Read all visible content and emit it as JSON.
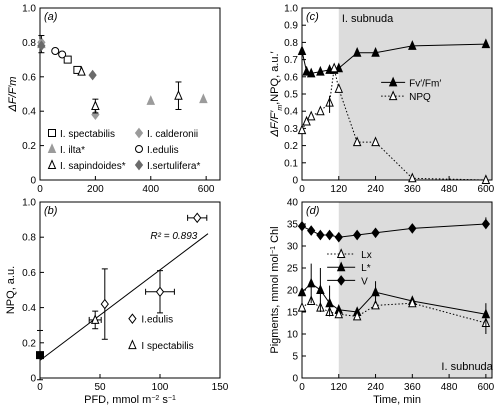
{
  "colors": {
    "black": "#000000",
    "white": "#ffffff",
    "dark_grey": "#6b6b6b",
    "mid_grey": "#9b9b9b",
    "shade": "#dcdcdc"
  },
  "chart_data": [
    {
      "panel": "(a)",
      "type": "scatter",
      "ylabel": "ΔF/F′m",
      "xlim": [
        0,
        650
      ],
      "ylim": [
        0,
        1.0
      ],
      "x_ticks": [
        "0",
        "200",
        "400",
        "600"
      ],
      "y_ticks": [
        "0",
        "0.2",
        "0.4",
        "0.6",
        "0.8",
        "1.0"
      ],
      "legend": [
        {
          "label": "I. spectabilis",
          "marker": "open-square"
        },
        {
          "label": "I. calderonii",
          "marker": "grey-diamond"
        },
        {
          "label": "I. ilta*",
          "marker": "grey-triangle"
        },
        {
          "label": "I.edulis",
          "marker": "open-circle"
        },
        {
          "label": "I. sapindoides*",
          "marker": "open-triangle"
        },
        {
          "label": "I.sertulifera*",
          "marker": "dark-diamond"
        }
      ],
      "series": [
        {
          "name": "I. spectabilis",
          "marker": "open-square",
          "points": [
            {
              "x": 100,
              "y": 0.7
            },
            {
              "x": 135,
              "y": 0.64
            }
          ]
        },
        {
          "name": "I. calderonii",
          "marker": "grey-diamond",
          "points": [
            {
              "x": 5,
              "y": 0.8
            },
            {
              "x": 200,
              "y": 0.38
            }
          ]
        },
        {
          "name": "I. ilta*",
          "marker": "grey-triangle",
          "points": [
            {
              "x": 5,
              "y": 0.79,
              "err": 0.05
            },
            {
              "x": 200,
              "y": 0.43,
              "err": 0.04
            },
            {
              "x": 400,
              "y": 0.46
            },
            {
              "x": 590,
              "y": 0.47
            }
          ]
        },
        {
          "name": "I.edulis",
          "marker": "open-circle",
          "points": [
            {
              "x": 80,
              "y": 0.73
            },
            {
              "x": 55,
              "y": 0.75
            }
          ]
        },
        {
          "name": "I. sapindoides*",
          "marker": "open-triangle",
          "points": [
            {
              "x": 150,
              "y": 0.63
            },
            {
              "x": 200,
              "y": 0.43
            },
            {
              "x": 500,
              "y": 0.49,
              "err": 0.08
            }
          ]
        },
        {
          "name": "I.sertulifera*",
          "marker": "dark-diamond",
          "points": [
            {
              "x": 5,
              "y": 0.78
            },
            {
              "x": 190,
              "y": 0.61
            }
          ]
        }
      ]
    },
    {
      "panel": "(b)",
      "type": "scatter",
      "xlabel_parts": [
        "PFD, mmol m",
        "−2",
        " s",
        "−1"
      ],
      "ylabel": "NPQ, a.u.",
      "xlim": [
        0,
        150
      ],
      "ylim": [
        0,
        1.0
      ],
      "x_ticks": [
        "0",
        "50",
        "100",
        "150"
      ],
      "y_ticks": [
        "0",
        "0.2",
        "0.4",
        "0.6",
        "0.8",
        "1.0"
      ],
      "annotation": "R² = 0.893",
      "legend": [
        {
          "label": "I.edulis",
          "marker": "open-diamond"
        },
        {
          "label": "I spectabilis",
          "marker": "open-triangle"
        }
      ],
      "regression": {
        "x": [
          0,
          140
        ],
        "y": [
          0.1,
          0.82
        ]
      },
      "series": [
        {
          "name": "",
          "marker": "black-square",
          "points": [
            {
              "x": 0,
              "y": 0.13,
              "yerr": 0.14
            }
          ]
        },
        {
          "name": "I.edulis",
          "marker": "open-diamond",
          "points": [
            {
              "x": 54,
              "y": 0.42,
              "yerr": 0.2
            },
            {
              "x": 100,
              "y": 0.49,
              "yerr": 0.12,
              "xerr": 12
            },
            {
              "x": 131,
              "y": 0.91,
              "xerr": 8
            }
          ]
        },
        {
          "name": "I spectabilis",
          "marker": "open-triangle",
          "points": [
            {
              "x": 46,
              "y": 0.33,
              "yerr": 0.05,
              "xerr": 5
            }
          ]
        }
      ]
    },
    {
      "panel": "(c)",
      "type": "line",
      "title": "I. subnuda",
      "ylabel_parts": [
        "ΔF/F′",
        "m",
        ",NPQ, a.u.′"
      ],
      "xlim": [
        0,
        620
      ],
      "ylim": [
        0,
        1.0
      ],
      "x_ticks": [
        "0",
        "120",
        "240",
        "360",
        "480",
        "600"
      ],
      "y_ticks": [
        "0",
        "0.1",
        "0.2",
        "0.3",
        "0.4",
        "0.5",
        "0.6",
        "0.7",
        "0.8",
        "0.9",
        "1.0"
      ],
      "shaded_region": [
        120,
        620
      ],
      "legend": [
        {
          "label": "Fv′/Fm′",
          "marker": "black-triangle",
          "line": "solid"
        },
        {
          "label": "NPQ",
          "marker": "open-triangle",
          "line": "dotted"
        }
      ],
      "series": [
        {
          "name": "Fv′/Fm′",
          "marker": "black-triangle",
          "line": "solid",
          "x": [
            0,
            15,
            30,
            60,
            90,
            105,
            120,
            180,
            240,
            360,
            600
          ],
          "y": [
            0.75,
            0.63,
            0.62,
            0.63,
            0.64,
            0.64,
            0.65,
            0.74,
            0.74,
            0.78,
            0.79
          ]
        },
        {
          "name": "NPQ",
          "marker": "open-triangle",
          "line": "dotted",
          "x": [
            0,
            15,
            30,
            60,
            90,
            105,
            120,
            180,
            240,
            360,
            600
          ],
          "y": [
            0.29,
            0.34,
            0.37,
            0.4,
            0.45,
            0.65,
            0.53,
            0.22,
            0.22,
            0.01,
            0.0
          ]
        }
      ]
    },
    {
      "panel": "(d)",
      "type": "line",
      "subtitle": "I. subnuda",
      "xlabel": "Time, min",
      "ylabel_parts": [
        "Pigments, mmol mol",
        "−1",
        " Chl"
      ],
      "xlim": [
        0,
        620
      ],
      "ylim": [
        0,
        40
      ],
      "x_ticks": [
        "0",
        "120",
        "240",
        "360",
        "480",
        "600"
      ],
      "y_ticks": [
        "0",
        "5",
        "10",
        "15",
        "20",
        "25",
        "30",
        "35",
        "40"
      ],
      "shaded_region": [
        120,
        620
      ],
      "legend": [
        {
          "label": "Lx",
          "marker": "open-triangle",
          "line": "dotted"
        },
        {
          "label": "L*",
          "marker": "black-triangle",
          "line": "solid"
        },
        {
          "label": "V",
          "marker": "black-diamond",
          "line": "solid"
        }
      ],
      "series": [
        {
          "name": "V",
          "marker": "black-diamond",
          "line": "solid",
          "x": [
            0,
            30,
            60,
            90,
            120,
            180,
            240,
            360,
            600
          ],
          "y": [
            34.5,
            33.5,
            32.5,
            32.5,
            32.0,
            32.5,
            33.0,
            34.0,
            35.0
          ]
        },
        {
          "name": "L*",
          "marker": "black-triangle",
          "line": "solid",
          "x": [
            0,
            30,
            60,
            90,
            120,
            180,
            240,
            360,
            600
          ],
          "y": [
            19.5,
            21.5,
            20.0,
            17.0,
            15.5,
            15.0,
            19.5,
            17.5,
            14.5
          ]
        },
        {
          "name": "Lx",
          "marker": "open-triangle",
          "line": "dotted",
          "x": [
            0,
            30,
            60,
            90,
            120,
            180,
            240,
            360,
            600
          ],
          "y": [
            16.0,
            17.5,
            16.0,
            15.0,
            14.5,
            14.0,
            16.5,
            17.0,
            12.5
          ]
        }
      ]
    }
  ]
}
